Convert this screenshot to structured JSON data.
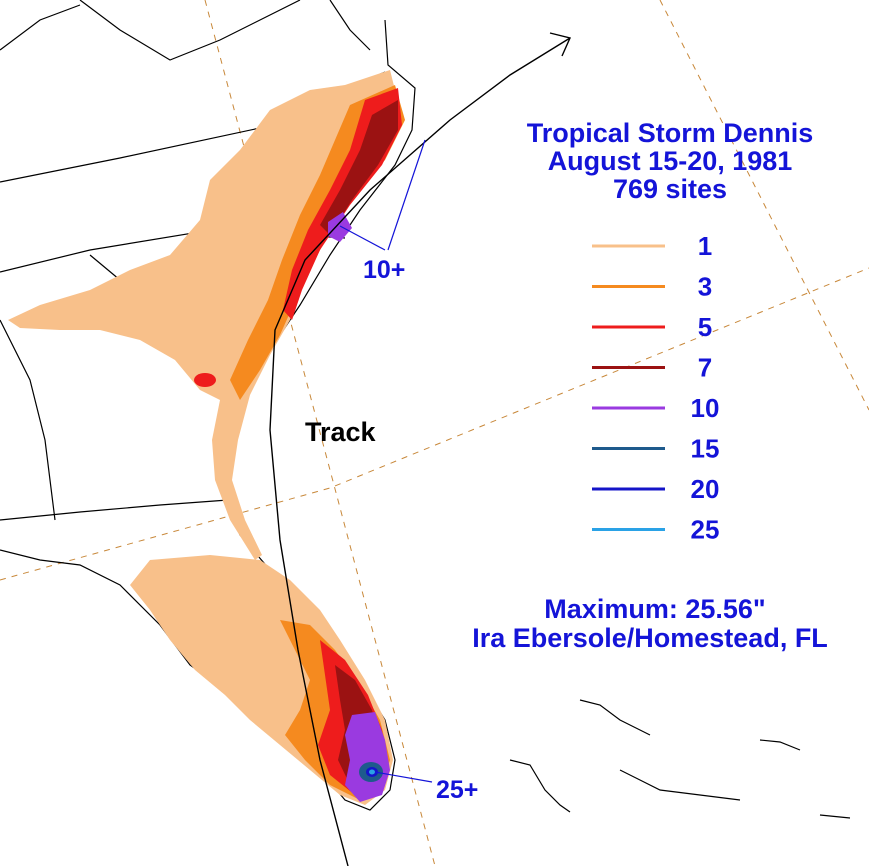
{
  "title": {
    "line1": "Tropical Storm Dennis",
    "line2": "August 15-20, 1981",
    "line3": "769 sites"
  },
  "legend": [
    {
      "label": "1",
      "color": "#f8c08a"
    },
    {
      "label": "3",
      "color": "#f58a1f"
    },
    {
      "label": "5",
      "color": "#ee1c1c"
    },
    {
      "label": "7",
      "color": "#9b1212"
    },
    {
      "label": "10",
      "color": "#9a3ae0"
    },
    {
      "label": "15",
      "color": "#1e5a8c"
    },
    {
      "label": "20",
      "color": "#1414c8"
    },
    {
      "label": "25",
      "color": "#2aa2e6"
    }
  ],
  "annotations": {
    "track_label": "Track",
    "nc_max_label": "10+",
    "fl_max_label": "25+",
    "maximum_line": "Maximum:  25.56\"",
    "maximum_site": "Ira Ebersole/Homestead, FL"
  },
  "colors": {
    "text": "#1414d8",
    "graticule": "#c8883a",
    "land_fill": "#ffffff",
    "border": "#000000"
  }
}
